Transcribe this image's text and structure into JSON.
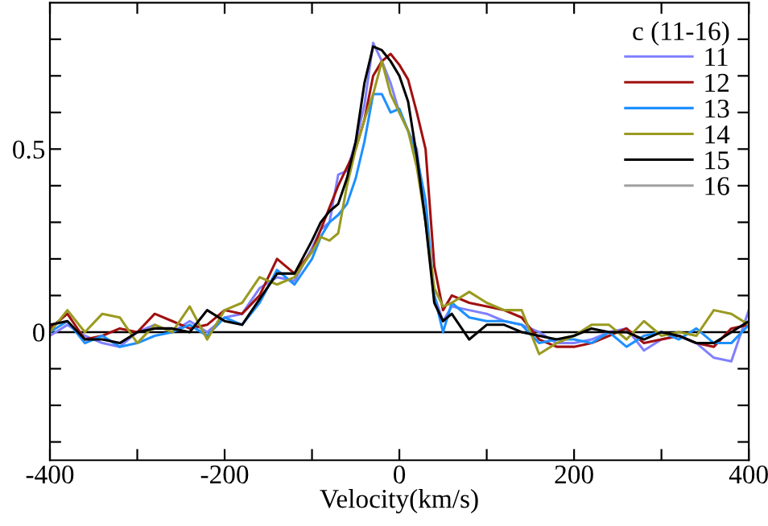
{
  "chart_data": {
    "type": "line",
    "xlabel": "Velocity(km/s)",
    "legend_title": "c (11-16)",
    "legend": "top right",
    "grid": false,
    "marker": "none",
    "line_style": "solid",
    "x": [
      -400,
      -380,
      -360,
      -340,
      -320,
      -300,
      -280,
      -260,
      -240,
      -220,
      -200,
      -180,
      -160,
      -140,
      -120,
      -100,
      -90,
      -80,
      -70,
      -60,
      -50,
      -40,
      -30,
      -20,
      -10,
      0,
      10,
      20,
      30,
      40,
      50,
      60,
      80,
      100,
      120,
      140,
      160,
      180,
      200,
      220,
      240,
      260,
      280,
      300,
      320,
      340,
      360,
      380,
      400
    ],
    "xlim": [
      -400,
      400
    ],
    "ylim": [
      -0.35,
      0.9
    ],
    "xticks": [
      -400,
      {
        "value": -300,
        "label": null
      },
      -200,
      {
        "value": -100,
        "label": null
      },
      0,
      {
        "value": 100,
        "label": null
      },
      200,
      {
        "value": 300,
        "label": null
      },
      400
    ],
    "yticks": [
      {
        "value": -0.3,
        "label": null
      },
      {
        "value": -0.2,
        "label": null
      },
      {
        "value": -0.1,
        "label": null
      },
      0,
      {
        "value": 0.1,
        "label": null
      },
      {
        "value": 0.2,
        "label": null
      },
      {
        "value": 0.3,
        "label": null
      },
      {
        "value": 0.4,
        "label": null
      },
      0.5,
      {
        "value": 0.6,
        "label": null
      },
      {
        "value": 0.7,
        "label": null
      },
      {
        "value": 0.8,
        "label": null
      }
    ],
    "ref_lines": [
      {
        "axis": "y",
        "value": 0,
        "color": "#000000",
        "line_style": "solid"
      }
    ],
    "series": [
      {
        "name": "11",
        "color": "#8080ff",
        "values": [
          -0.01,
          0.02,
          -0.01,
          -0.03,
          -0.04,
          0.0,
          0.02,
          0.0,
          0.03,
          0.0,
          0.04,
          0.05,
          0.12,
          0.15,
          0.14,
          0.23,
          0.28,
          0.3,
          0.43,
          0.44,
          0.52,
          0.62,
          0.79,
          0.74,
          0.68,
          0.6,
          0.55,
          0.5,
          0.3,
          0.1,
          0.03,
          0.07,
          0.06,
          0.05,
          0.03,
          0.02,
          0.0,
          -0.03,
          -0.03,
          -0.02,
          0.0,
          0.01,
          -0.05,
          -0.02,
          -0.01,
          -0.03,
          -0.07,
          -0.08,
          0.06
        ]
      },
      {
        "name": "12",
        "color": "#a01010",
        "values": [
          0.01,
          0.05,
          -0.02,
          -0.01,
          0.01,
          0.0,
          0.05,
          0.03,
          0.01,
          0.02,
          0.06,
          0.05,
          0.1,
          0.2,
          0.16,
          0.22,
          0.28,
          0.34,
          0.4,
          0.45,
          0.5,
          0.58,
          0.7,
          0.74,
          0.76,
          0.73,
          0.69,
          0.6,
          0.5,
          0.18,
          0.06,
          0.1,
          0.08,
          0.07,
          0.06,
          0.04,
          -0.02,
          -0.04,
          -0.04,
          -0.03,
          -0.01,
          0.01,
          -0.03,
          -0.02,
          -0.01,
          -0.03,
          -0.04,
          0.01,
          0.02
        ]
      },
      {
        "name": "13",
        "color": "#1e90ff",
        "values": [
          0.0,
          0.03,
          -0.03,
          -0.01,
          -0.04,
          -0.03,
          -0.01,
          0.0,
          0.02,
          -0.01,
          0.04,
          0.02,
          0.08,
          0.17,
          0.13,
          0.2,
          0.26,
          0.3,
          0.32,
          0.35,
          0.42,
          0.52,
          0.65,
          0.65,
          0.6,
          0.61,
          0.55,
          0.48,
          0.36,
          0.1,
          0.0,
          0.08,
          0.04,
          0.03,
          0.03,
          0.02,
          -0.03,
          -0.02,
          -0.02,
          -0.03,
          0.0,
          -0.04,
          -0.01,
          0.0,
          -0.02,
          0.01,
          -0.03,
          -0.03,
          0.02
        ]
      },
      {
        "name": "14",
        "color": "#9a9a20",
        "values": [
          0.0,
          0.06,
          0.0,
          0.05,
          0.04,
          -0.03,
          0.02,
          0.0,
          0.07,
          -0.02,
          0.06,
          0.08,
          0.15,
          0.13,
          0.15,
          0.22,
          0.26,
          0.25,
          0.27,
          0.4,
          0.5,
          0.58,
          0.65,
          0.74,
          0.65,
          0.6,
          0.55,
          0.45,
          0.3,
          0.12,
          0.07,
          0.08,
          0.11,
          0.08,
          0.06,
          0.06,
          -0.06,
          -0.03,
          -0.01,
          0.02,
          0.02,
          -0.02,
          0.03,
          -0.01,
          0.0,
          -0.01,
          0.06,
          0.05,
          0.02
        ]
      },
      {
        "name": "15",
        "color": "#000000",
        "values": [
          0.02,
          0.03,
          -0.02,
          -0.02,
          -0.03,
          0.0,
          0.01,
          0.01,
          0.0,
          0.06,
          0.03,
          0.02,
          0.09,
          0.16,
          0.16,
          0.25,
          0.3,
          0.33,
          0.35,
          0.42,
          0.52,
          0.68,
          0.78,
          0.77,
          0.74,
          0.7,
          0.63,
          0.48,
          0.3,
          0.08,
          0.03,
          0.05,
          -0.02,
          0.02,
          0.02,
          0.0,
          -0.01,
          -0.02,
          -0.01,
          0.01,
          0.0,
          0.0,
          -0.02,
          0.0,
          -0.01,
          -0.03,
          -0.03,
          0.0,
          0.03
        ]
      },
      {
        "name": "16",
        "color": "#a0a0a0",
        "values": [
          null,
          null,
          null,
          null,
          null,
          null,
          null,
          null,
          null,
          null,
          null,
          null,
          null,
          null,
          null,
          null,
          null,
          null,
          null,
          null,
          null,
          null,
          null,
          null,
          null,
          null,
          null,
          null,
          null,
          null,
          null,
          null,
          null,
          null,
          null,
          null,
          null,
          null,
          null,
          null,
          null,
          null,
          null,
          null,
          null,
          null,
          null,
          null,
          null
        ]
      }
    ]
  }
}
